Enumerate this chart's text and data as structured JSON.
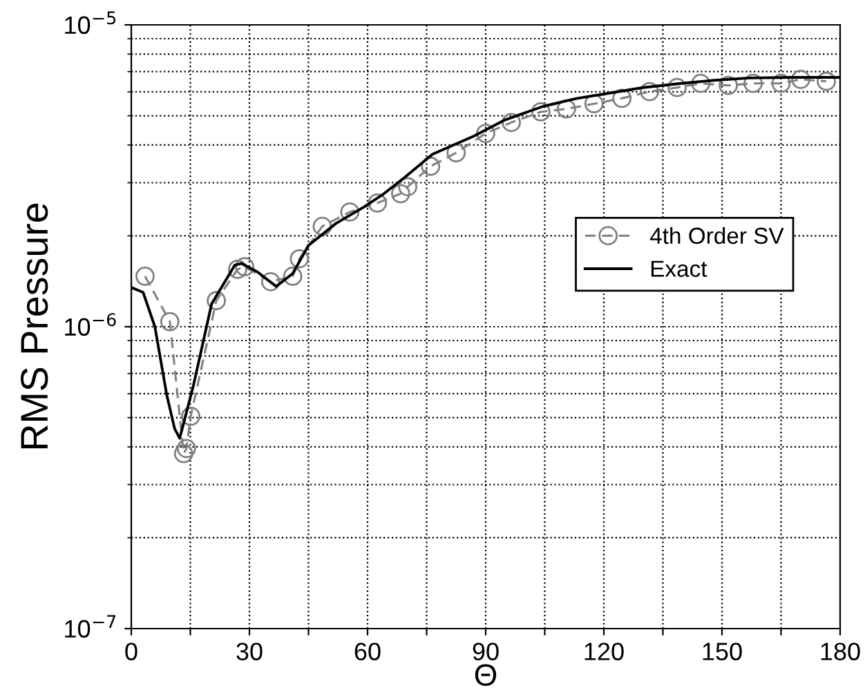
{
  "chart_data": {
    "type": "line",
    "xlabel": "Θ",
    "ylabel": "RMS Pressure",
    "log": "y",
    "grid": true,
    "legend": "right",
    "xlim": [
      0,
      180
    ],
    "xticks": [
      0,
      {
        "value": 15,
        "label": null
      },
      30,
      {
        "value": 45,
        "label": null
      },
      60,
      {
        "value": 75,
        "label": null
      },
      90,
      {
        "value": 105,
        "label": null
      },
      120,
      {
        "value": 135,
        "label": null
      },
      150,
      {
        "value": 165,
        "label": null
      },
      180
    ],
    "ylim": [
      1e-07,
      1e-05
    ],
    "yticks": [
      {
        "value": 1e-07,
        "label": "10$^{−7}$"
      },
      {
        "value": 1e-06,
        "label": "10$^{−6}$"
      },
      {
        "value": 1e-05,
        "label": "10$^{−5}$"
      }
    ],
    "series": [
      {
        "name": "4th Order SV",
        "color": "#808080",
        "marker": "circle",
        "line_style": "dashed",
        "x": [
          3.5,
          9.8,
          13.3,
          14,
          15.1,
          21.6,
          27,
          28.8,
          35.4,
          41,
          42.7,
          48.5,
          55.5,
          62.5,
          68.4,
          70.2,
          76,
          82.5,
          90,
          96.5,
          104,
          110.5,
          117.5,
          124.6,
          131.6,
          138.6,
          144.6,
          151.6,
          157.9,
          165,
          170,
          176.5
        ],
        "values": [
          1.47e-06,
          1.04e-06,
          3.8e-07,
          3.95e-07,
          5.05e-07,
          1.22e-06,
          1.55e-06,
          1.58e-06,
          1.41e-06,
          1.47e-06,
          1.68e-06,
          2.15e-06,
          2.4e-06,
          2.57e-06,
          2.76e-06,
          2.91e-06,
          3.4e-06,
          3.77e-06,
          4.37e-06,
          4.75e-06,
          5.15e-06,
          5.27e-06,
          5.48e-06,
          5.71e-06,
          6.01e-06,
          6.2e-06,
          6.4e-06,
          6.3e-06,
          6.4e-06,
          6.4e-06,
          6.6e-06,
          6.5e-06
        ]
      },
      {
        "name": "Exact",
        "color": "#000000",
        "marker": "none",
        "line_style": "solid",
        "x": [
          0,
          3,
          6,
          9,
          11,
          12.3,
          15.8,
          20.4,
          26.3,
          28,
          32,
          36.8,
          41,
          45,
          52,
          59,
          64,
          69.5,
          76.5,
          87,
          95,
          104.6,
          113,
          122,
          130,
          139.6,
          148,
          157,
          168,
          180
        ],
        "values": [
          1.35e-06,
          1.3e-06,
          1e-06,
          5.95e-07,
          4.6e-07,
          4.27e-07,
          6.4e-07,
          1.19e-06,
          1.6e-06,
          1.62e-06,
          1.52e-06,
          1.36e-06,
          1.5e-06,
          1.86e-06,
          2.2e-06,
          2.49e-06,
          2.75e-06,
          3.13e-06,
          3.73e-06,
          4.28e-06,
          4.85e-06,
          5.37e-06,
          5.7e-06,
          5.96e-06,
          6.2e-06,
          6.4e-06,
          6.55e-06,
          6.67e-06,
          6.7e-06,
          6.7e-06
        ]
      }
    ]
  }
}
